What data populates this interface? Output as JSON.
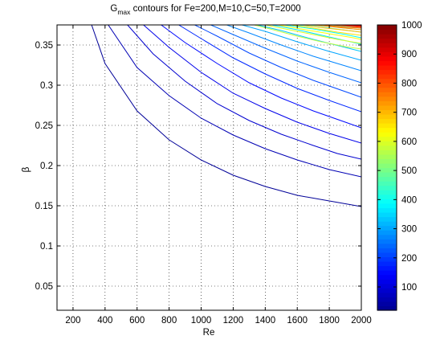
{
  "chart_data": {
    "type": "contour",
    "title": {
      "prefix": "G",
      "subscript": "max",
      "suffix": " contours for Fe=200,M=10,C=50,T=2000"
    },
    "xlabel": "Re",
    "ylabel": "β",
    "xlim": [
      100,
      2000
    ],
    "ylim": [
      0.02,
      0.375
    ],
    "xticks": [
      200,
      400,
      600,
      800,
      1000,
      1200,
      1400,
      1600,
      1800,
      2000
    ],
    "yticks": [
      0.05,
      0.1,
      0.15,
      0.2,
      0.25,
      0.3,
      0.35
    ],
    "grid": "dotted",
    "colorbar": {
      "range": [
        20,
        1000
      ],
      "ticks": [
        100,
        200,
        300,
        400,
        500,
        600,
        700,
        800,
        900,
        1000
      ],
      "colormap": [
        "#00008f",
        "#0000ff",
        "#00ffff",
        "#ffff00",
        "#ff0000",
        "#800000"
      ]
    },
    "contours": [
      {
        "level": 30,
        "points": [
          [
            316,
            0.375
          ],
          [
            400,
            0.327
          ],
          [
            600,
            0.268
          ],
          [
            800,
            0.232
          ],
          [
            1000,
            0.207
          ],
          [
            1200,
            0.188
          ],
          [
            1400,
            0.174
          ],
          [
            1600,
            0.163
          ],
          [
            1800,
            0.156
          ],
          [
            2000,
            0.149
          ]
        ]
      },
      {
        "level": 60,
        "points": [
          [
            420,
            0.375
          ],
          [
            600,
            0.322
          ],
          [
            800,
            0.287
          ],
          [
            1000,
            0.259
          ],
          [
            1200,
            0.238
          ],
          [
            1400,
            0.221
          ],
          [
            1600,
            0.207
          ],
          [
            1800,
            0.195
          ],
          [
            2000,
            0.186
          ]
        ]
      },
      {
        "level": 90,
        "points": [
          [
            540,
            0.375
          ],
          [
            700,
            0.339
          ],
          [
            900,
            0.305
          ],
          [
            1100,
            0.277
          ],
          [
            1300,
            0.256
          ],
          [
            1500,
            0.239
          ],
          [
            1700,
            0.225
          ],
          [
            1850,
            0.215
          ],
          [
            2000,
            0.208
          ]
        ]
      },
      {
        "level": 120,
        "points": [
          [
            640,
            0.375
          ],
          [
            800,
            0.347
          ],
          [
            1000,
            0.316
          ],
          [
            1200,
            0.29
          ],
          [
            1400,
            0.271
          ],
          [
            1600,
            0.254
          ],
          [
            1800,
            0.24
          ],
          [
            2000,
            0.228
          ]
        ]
      },
      {
        "level": 150,
        "points": [
          [
            750,
            0.375
          ],
          [
            900,
            0.353
          ],
          [
            1100,
            0.327
          ],
          [
            1300,
            0.303
          ],
          [
            1500,
            0.284
          ],
          [
            1700,
            0.268
          ],
          [
            1900,
            0.254
          ],
          [
            2000,
            0.247
          ]
        ]
      },
      {
        "level": 180,
        "points": [
          [
            860,
            0.375
          ],
          [
            1000,
            0.358
          ],
          [
            1200,
            0.334
          ],
          [
            1400,
            0.314
          ],
          [
            1600,
            0.296
          ],
          [
            1800,
            0.281
          ],
          [
            2000,
            0.267
          ]
        ]
      },
      {
        "level": 210,
        "points": [
          [
            960,
            0.375
          ],
          [
            1100,
            0.361
          ],
          [
            1300,
            0.34
          ],
          [
            1500,
            0.322
          ],
          [
            1700,
            0.306
          ],
          [
            1900,
            0.292
          ],
          [
            2000,
            0.285
          ]
        ]
      },
      {
        "level": 240,
        "points": [
          [
            1060,
            0.375
          ],
          [
            1200,
            0.363
          ],
          [
            1400,
            0.346
          ],
          [
            1600,
            0.33
          ],
          [
            1800,
            0.316
          ],
          [
            2000,
            0.303
          ]
        ]
      },
      {
        "level": 270,
        "points": [
          [
            1160,
            0.375
          ],
          [
            1300,
            0.365
          ],
          [
            1500,
            0.35
          ],
          [
            1700,
            0.336
          ],
          [
            1900,
            0.324
          ],
          [
            2000,
            0.318
          ]
        ]
      },
      {
        "level": 300,
        "points": [
          [
            1255,
            0.375
          ],
          [
            1400,
            0.367
          ],
          [
            1600,
            0.354
          ],
          [
            1800,
            0.342
          ],
          [
            2000,
            0.331
          ]
        ]
      },
      {
        "level": 330,
        "points": [
          [
            1350,
            0.375
          ],
          [
            1500,
            0.368
          ],
          [
            1700,
            0.357
          ],
          [
            1900,
            0.347
          ],
          [
            2000,
            0.342
          ]
        ]
      },
      {
        "level": 360,
        "points": [
          [
            1440,
            0.375
          ],
          [
            1600,
            0.369
          ],
          [
            1800,
            0.36
          ],
          [
            2000,
            0.351
          ]
        ]
      },
      {
        "level": 390,
        "points": [
          [
            1520,
            0.375
          ],
          [
            1700,
            0.37
          ],
          [
            1900,
            0.363
          ],
          [
            2000,
            0.359
          ]
        ]
      },
      {
        "level": 420,
        "points": [
          [
            1600,
            0.375
          ],
          [
            1800,
            0.371
          ],
          [
            2000,
            0.366
          ]
        ]
      },
      {
        "level": 450,
        "points": [
          [
            1670,
            0.375
          ],
          [
            1850,
            0.372
          ],
          [
            2000,
            0.369
          ]
        ]
      },
      {
        "level": 480,
        "points": [
          [
            1740,
            0.375
          ],
          [
            1900,
            0.373
          ],
          [
            2000,
            0.371
          ]
        ]
      },
      {
        "level": 510,
        "points": [
          [
            1800,
            0.375
          ],
          [
            2000,
            0.373
          ]
        ]
      },
      {
        "level": 540,
        "points": [
          [
            1855,
            0.375
          ],
          [
            2000,
            0.374
          ]
        ]
      },
      {
        "level": 570,
        "points": [
          [
            1330,
            0.375
          ],
          [
            1450,
            0.369
          ],
          [
            1600,
            0.361
          ],
          [
            1750,
            0.354
          ],
          [
            1900,
            0.348
          ],
          [
            2000,
            0.345
          ]
        ]
      },
      {
        "level": 600,
        "points": [
          [
            1400,
            0.375
          ],
          [
            1550,
            0.369
          ],
          [
            1700,
            0.363
          ],
          [
            1850,
            0.357
          ],
          [
            2000,
            0.352
          ]
        ]
      },
      {
        "level": 630,
        "points": [
          [
            1480,
            0.375
          ],
          [
            1650,
            0.369
          ],
          [
            1800,
            0.364
          ],
          [
            1950,
            0.359
          ],
          [
            2000,
            0.357
          ]
        ]
      },
      {
        "level": 660,
        "points": [
          [
            1560,
            0.375
          ],
          [
            1700,
            0.371
          ],
          [
            1850,
            0.366
          ],
          [
            2000,
            0.362
          ]
        ]
      },
      {
        "level": 700,
        "points": [
          [
            1630,
            0.375
          ],
          [
            1780,
            0.371
          ],
          [
            1920,
            0.368
          ],
          [
            2000,
            0.366
          ]
        ]
      },
      {
        "level": 740,
        "points": [
          [
            1700,
            0.375
          ],
          [
            1850,
            0.372
          ],
          [
            2000,
            0.369
          ]
        ]
      },
      {
        "level": 780,
        "points": [
          [
            1760,
            0.375
          ],
          [
            1900,
            0.372
          ],
          [
            2000,
            0.371
          ]
        ]
      },
      {
        "level": 820,
        "points": [
          [
            1820,
            0.375
          ],
          [
            1950,
            0.373
          ],
          [
            2000,
            0.372
          ]
        ]
      },
      {
        "level": 860,
        "points": [
          [
            1870,
            0.375
          ],
          [
            2000,
            0.373
          ]
        ]
      },
      {
        "level": 900,
        "points": [
          [
            1915,
            0.375
          ],
          [
            2000,
            0.374
          ]
        ]
      },
      {
        "level": 940,
        "points": [
          [
            1950,
            0.375
          ],
          [
            2000,
            0.3745
          ]
        ]
      },
      {
        "level": 980,
        "points": [
          [
            1980,
            0.375
          ],
          [
            2000,
            0.3748
          ]
        ]
      }
    ]
  }
}
